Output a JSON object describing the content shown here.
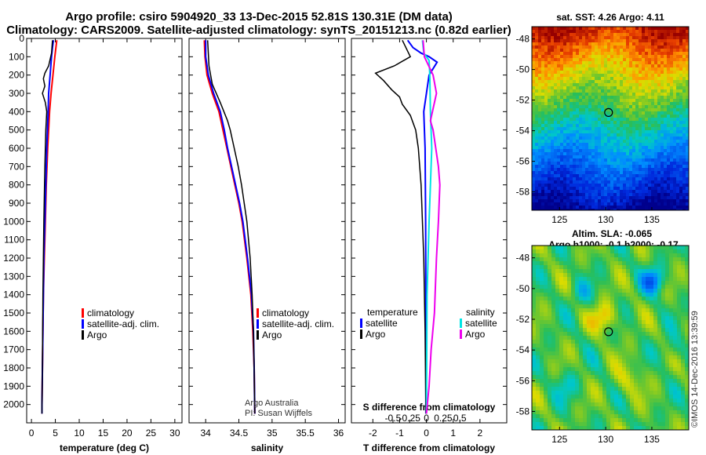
{
  "header": {
    "title1": "Argo profile: csiro 5904920_33 13-Dec-2015 52.81S 130.31E (DM data)",
    "title2": "Climatology: CARS2009. Satellite-adjusted climatology: synTS_20151213.nc (0.82d earlier)"
  },
  "colors": {
    "climatology": "#ff0000",
    "satellite": "#0000ff",
    "argo": "#000000",
    "salinity_satellite": "#00e5e5",
    "salinity_argo": "#ee00ee"
  },
  "chart_data": [
    {
      "type": "line",
      "panel": "temperature",
      "xlabel": "temperature (deg C)",
      "xlim": [
        -1,
        31.5
      ],
      "xticks": [
        0,
        5,
        10,
        15,
        20,
        25,
        30
      ],
      "ylim": [
        2100,
        0
      ],
      "yticks": [
        0,
        100,
        200,
        300,
        400,
        500,
        600,
        700,
        800,
        900,
        1000,
        1100,
        1200,
        1300,
        1400,
        1500,
        1600,
        1700,
        1800,
        1900,
        2000
      ],
      "legend": [
        "climatology",
        "satellite-adj. clim.",
        "Argo"
      ],
      "series": [
        {
          "name": "climatology",
          "depth": [
            10,
            100,
            200,
            300,
            400,
            600,
            800,
            1000,
            1200,
            1400,
            1600,
            1800,
            2000,
            2050
          ],
          "values": [
            5.3,
            4.9,
            4.5,
            4.1,
            3.8,
            3.4,
            3.1,
            2.9,
            2.7,
            2.5,
            2.4,
            2.3,
            2.2,
            2.2
          ]
        },
        {
          "name": "satellite-adj. clim.",
          "depth": [
            10,
            50,
            100,
            200,
            300,
            400,
            600,
            800,
            1000,
            1200,
            1400,
            1600,
            1800,
            2000,
            2050
          ],
          "values": [
            4.6,
            4.4,
            4.2,
            3.9,
            3.6,
            3.5,
            3.2,
            3.0,
            2.8,
            2.6,
            2.5,
            2.4,
            2.3,
            2.2,
            2.2
          ]
        },
        {
          "name": "Argo",
          "depth": [
            10,
            80,
            150,
            190,
            220,
            260,
            300,
            350,
            400,
            500,
            700,
            1000,
            1400,
            1800,
            2000,
            2050
          ],
          "values": [
            4.4,
            4.2,
            3.6,
            2.8,
            2.5,
            2.8,
            2.3,
            2.9,
            3.2,
            3.0,
            2.8,
            2.6,
            2.4,
            2.3,
            2.2,
            2.2
          ]
        }
      ]
    },
    {
      "type": "line",
      "panel": "salinity",
      "xlabel": "salinity",
      "xlim": [
        33.75,
        36.1
      ],
      "xticks": [
        34,
        34.5,
        35,
        35.5,
        36
      ],
      "xticklabels": [
        "34",
        "34.5",
        "35",
        "35.5",
        "36"
      ],
      "ylim": [
        2100,
        0
      ],
      "legend": [
        "climatology",
        "satellite-adj. clim.",
        "Argo"
      ],
      "annotation": [
        "Argo Australia",
        "PI: Susan Wijffels"
      ],
      "series": [
        {
          "name": "climatology",
          "depth": [
            10,
            100,
            200,
            300,
            400,
            500,
            600,
            700,
            800,
            900,
            1000,
            1200,
            1400,
            1600,
            1800,
            2050
          ],
          "values": [
            33.98,
            33.99,
            34.02,
            34.1,
            34.2,
            34.26,
            34.32,
            34.38,
            34.44,
            34.5,
            34.55,
            34.62,
            34.68,
            34.71,
            34.73,
            34.74
          ]
        },
        {
          "name": "satellite-adj. clim.",
          "depth": [
            10,
            100,
            200,
            300,
            400,
            500,
            600,
            700,
            800,
            900,
            1000,
            1200,
            1400,
            1600,
            1800,
            2050
          ],
          "values": [
            34.0,
            34.0,
            34.04,
            34.12,
            34.22,
            34.28,
            34.33,
            34.39,
            34.45,
            34.51,
            34.56,
            34.63,
            34.69,
            34.72,
            34.73,
            34.74
          ]
        },
        {
          "name": "Argo",
          "depth": [
            10,
            150,
            250,
            350,
            450,
            500,
            600,
            700,
            800,
            900,
            1000,
            1200,
            1400,
            1600,
            1800,
            2050
          ],
          "values": [
            34.03,
            34.05,
            34.1,
            34.22,
            34.33,
            34.37,
            34.43,
            34.49,
            34.54,
            34.58,
            34.62,
            34.67,
            34.7,
            34.72,
            34.73,
            34.74
          ]
        }
      ]
    },
    {
      "type": "line",
      "panel": "difference",
      "xlabel": "T difference from climatology",
      "xlim": [
        -2.8,
        3.0
      ],
      "xticks": [
        -2,
        -1,
        0,
        1,
        2
      ],
      "ylim": [
        2100,
        0
      ],
      "legend_title_temperature": "temperature",
      "legend_title_salinity": "salinity",
      "legend_temperature": [
        "satellite",
        "Argo"
      ],
      "legend_salinity": [
        "satellite",
        "Argo"
      ],
      "secondary_axis": {
        "label": "S difference from climatology",
        "ticks": [
          -0.5,
          -0.25,
          0,
          0.25,
          0.5
        ],
        "ticklabels": [
          "-0.5",
          "-0.25",
          "0",
          "0.25",
          "0.5"
        ]
      },
      "series": [
        {
          "name": "T satellite",
          "depth": [
            10,
            50,
            80,
            100,
            130,
            200,
            300,
            400,
            600,
            1000,
            1500,
            2050
          ],
          "values": [
            -0.7,
            -0.5,
            -0.2,
            0.1,
            0.4,
            0.1,
            0.0,
            -0.1,
            -0.05,
            -0.03,
            -0.02,
            -0.02
          ]
        },
        {
          "name": "T Argo",
          "depth": [
            10,
            70,
            100,
            150,
            190,
            230,
            280,
            320,
            360,
            420,
            500,
            600,
            800,
            1200,
            1600,
            2050
          ],
          "values": [
            -0.9,
            -0.7,
            -0.6,
            -1.2,
            -1.9,
            -1.6,
            -1.3,
            -1.0,
            -0.9,
            -0.6,
            -0.4,
            -0.3,
            -0.2,
            -0.1,
            -0.05,
            -0.02
          ]
        },
        {
          "name": "S satellite",
          "depth": [
            10,
            80,
            120,
            200,
            400,
            600,
            800,
            1000,
            1400,
            2050
          ],
          "values": [
            -0.06,
            -0.04,
            0.04,
            0.05,
            0.06,
            0.08,
            0.06,
            0.04,
            0.01,
            0.0
          ]
        },
        {
          "name": "S Argo",
          "depth": [
            10,
            100,
            200,
            300,
            450,
            500,
            600,
            700,
            800,
            1000,
            1200,
            1500,
            1700,
            1900,
            2050
          ],
          "values": [
            -0.05,
            -0.03,
            0.1,
            0.15,
            0.06,
            0.1,
            0.14,
            0.18,
            0.2,
            0.18,
            0.15,
            0.12,
            0.07,
            0.04,
            0.0
          ]
        }
      ]
    },
    {
      "type": "heatmap",
      "panel": "sst_map",
      "title": "sat. SST: 4.26 Argo: 4.11",
      "xticks": [
        125,
        130,
        135
      ],
      "yticks": [
        -48,
        -50,
        -52,
        -54,
        -56,
        -58
      ],
      "xlim": [
        122,
        139
      ],
      "ylim": [
        -59.2,
        -47.2
      ],
      "marker": {
        "lon": 130.31,
        "lat": -52.81
      }
    },
    {
      "type": "heatmap",
      "panel": "sla_map",
      "title_line1": "Altim. SLA: -0.065",
      "title_line2": "Argo h1000: -0.1 h2000: -0.17",
      "xticks": [
        125,
        130,
        135
      ],
      "yticks": [
        -48,
        -50,
        -52,
        -54,
        -56,
        -58
      ],
      "xlim": [
        122,
        139
      ],
      "ylim": [
        -59.2,
        -47.2
      ],
      "marker": {
        "lon": 130.31,
        "lat": -52.81
      }
    }
  ],
  "footer": {
    "credit": "©IMOS 14-Dec-2016 13:39:59"
  }
}
